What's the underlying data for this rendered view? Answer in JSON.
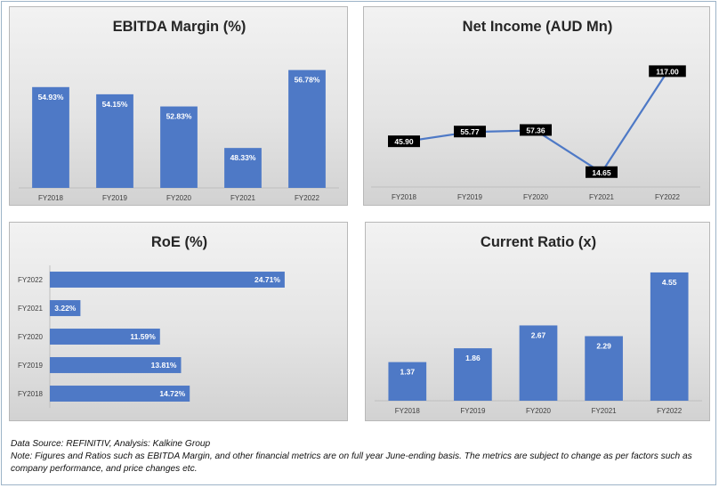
{
  "chart_data": [
    {
      "id": "ebitda",
      "type": "bar",
      "title": "EBITDA Margin (%)",
      "categories": [
        "FY2018",
        "FY2019",
        "FY2020",
        "FY2021",
        "FY2022"
      ],
      "values": [
        54.93,
        54.15,
        52.83,
        48.33,
        56.78
      ],
      "labels": [
        "54.93%",
        "54.15%",
        "52.83%",
        "48.33%",
        "56.78%"
      ],
      "ylim": [
        44,
        58
      ],
      "color": "#4e79c6",
      "grid": false
    },
    {
      "id": "netincome",
      "type": "line",
      "title": "Net Income (AUD Mn)",
      "categories": [
        "FY2018",
        "FY2019",
        "FY2020",
        "FY2021",
        "FY2022"
      ],
      "values": [
        45.9,
        55.77,
        57.36,
        14.65,
        117.0
      ],
      "labels": [
        "45.90",
        "55.77",
        "57.36",
        "14.65",
        "117.00"
      ],
      "ylim": [
        0,
        130
      ],
      "color": "#4e79c6",
      "grid": false
    },
    {
      "id": "roe",
      "type": "bar",
      "orientation": "horizontal",
      "title": "RoE (%)",
      "categories": [
        "FY2022",
        "FY2021",
        "FY2020",
        "FY2019",
        "FY2018"
      ],
      "values": [
        24.71,
        3.22,
        11.59,
        13.81,
        14.72
      ],
      "labels": [
        "24.71%",
        "3.22%",
        "11.59%",
        "13.81%",
        "14.72%"
      ],
      "xlim": [
        0,
        25
      ],
      "color": "#4e79c6",
      "grid": false
    },
    {
      "id": "currentratio",
      "type": "bar",
      "title": "Current Ratio (x)",
      "categories": [
        "FY2018",
        "FY2019",
        "FY2020",
        "FY2021",
        "FY2022"
      ],
      "values": [
        1.37,
        1.86,
        2.67,
        2.29,
        4.55
      ],
      "labels": [
        "1.37",
        "1.86",
        "2.67",
        "2.29",
        "4.55"
      ],
      "ylim": [
        0,
        4.8
      ],
      "color": "#4e79c6",
      "grid": false
    }
  ],
  "footnote": {
    "source": "Data Source: REFINITIV, Analysis: Kalkine Group",
    "note": "Note: Figures and Ratios such as EBITDA Margin, and other financial metrics are on full year June-ending basis. The metrics are subject to change as per factors such as company performance, and price changes etc."
  }
}
